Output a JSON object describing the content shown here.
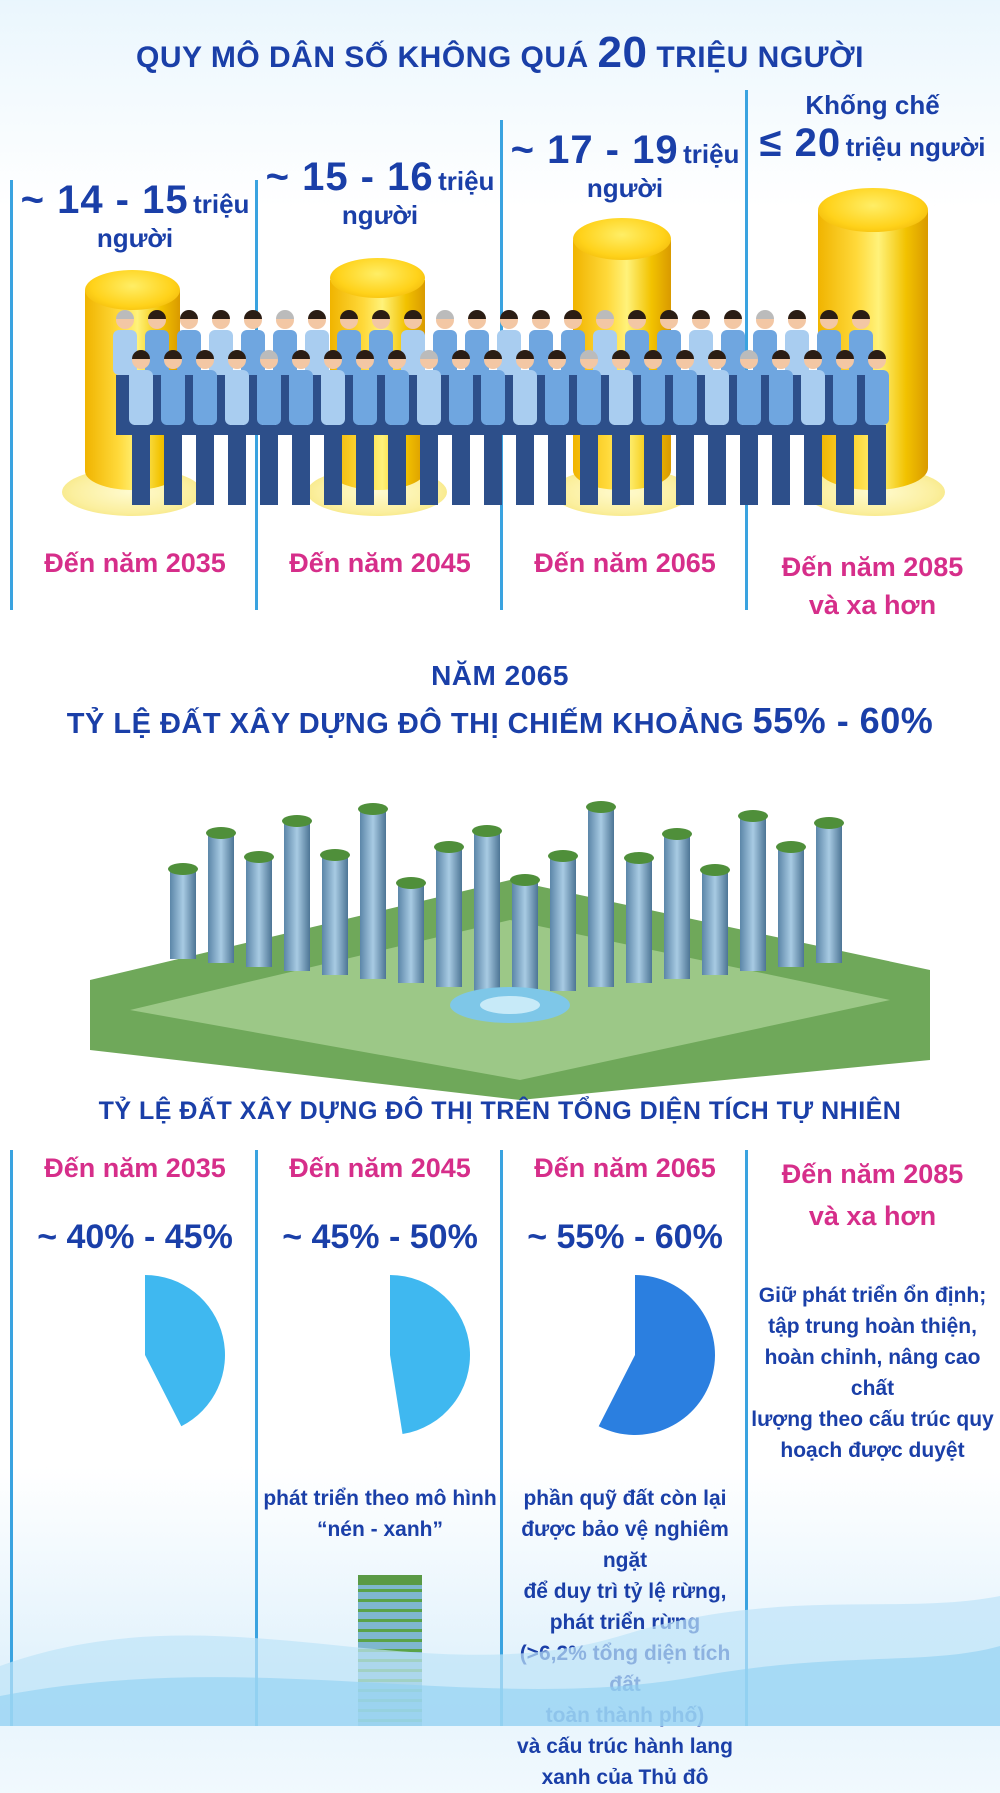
{
  "section1": {
    "title_prefix": "QUY MÔ DÂN SỐ KHÔNG QUÁ",
    "title_number": "20",
    "title_suffix": "TRIỆU NGƯỜI",
    "columns": [
      {
        "range": "~ 14 - 15",
        "unit": "triệu",
        "unit2": "người",
        "year": "Đến năm 2035",
        "year2": ""
      },
      {
        "range": "~ 15 - 16",
        "unit": "triệu",
        "unit2": "người",
        "year": "Đến năm 2045",
        "year2": ""
      },
      {
        "range": "~ 17 - 19",
        "unit": "triệu",
        "unit2": "người",
        "year": "Đến năm 2065",
        "year2": ""
      },
      {
        "range": "≤ 20",
        "unit": "triệu người",
        "pre": "Khống chế",
        "year": "Đến năm 2085",
        "year2": "và xa hơn"
      }
    ]
  },
  "section2": {
    "line1": "NĂM 2065",
    "line2_prefix": "TỶ LỆ ĐẤT XÂY DỰNG ĐÔ THỊ CHIẾM KHOẢNG",
    "line2_value": "55% - 60%"
  },
  "section3": {
    "title": "TỶ LỆ ĐẤT XÂY DỰNG ĐÔ THỊ TRÊN TỔNG DIỆN TÍCH TỰ NHIÊN",
    "columns": [
      {
        "year": "Đến năm 2035",
        "year2": "",
        "value": "~ 40% - 45%",
        "share": 0.425
      },
      {
        "year": "Đến năm 2045",
        "year2": "",
        "value": "~ 45% - 50%",
        "share": 0.475,
        "note": [
          "phát triển theo mô hình",
          "“nén - xanh”"
        ]
      },
      {
        "year": "Đến năm 2065",
        "year2": "",
        "value": "~ 55% - 60%",
        "share": 0.575,
        "note": [
          "phần quỹ đất còn lại",
          "được bảo vệ nghiêm ngặt",
          "để duy trì tỷ lệ rừng,",
          "phát triển rừng",
          "(>6,2% tổng diện tích đất",
          "toàn thành phố)",
          "và cấu trúc hành lang",
          "xanh của Thủ đô"
        ]
      },
      {
        "year": "Đến năm 2085",
        "year2": "và xa hơn",
        "note": [
          "Giữ phát triển ổn định;",
          "tập trung hoàn thiện,",
          "hoàn chỉnh, nâng cao chất",
          "lượng theo cấu trúc quy",
          "hoạch được duyệt"
        ]
      }
    ]
  },
  "colors": {
    "navy": "#1a3fa8",
    "pink": "#d62e8a",
    "gold": "#ffd21a",
    "line": "#3aa3e0",
    "pie_light": "#3fb8f0",
    "pie_dark": "#2b7fe0"
  }
}
